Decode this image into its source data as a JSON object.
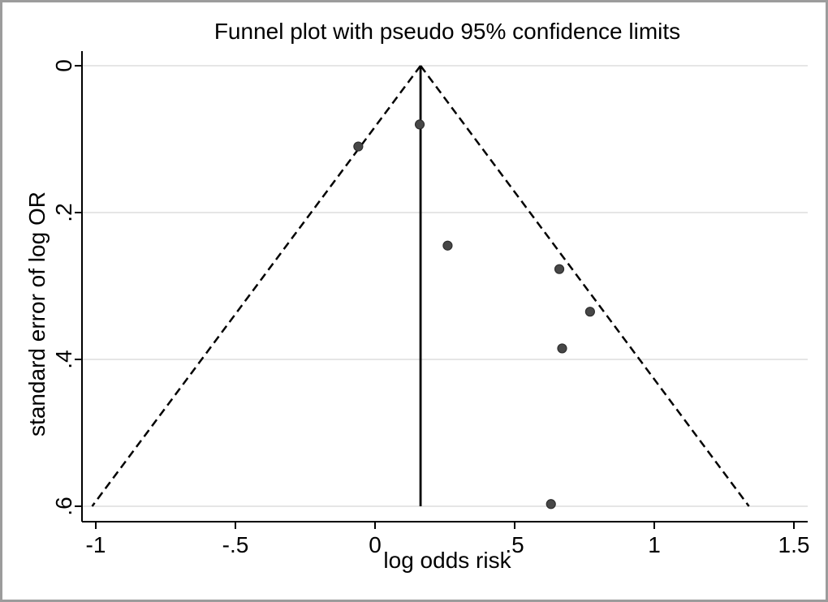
{
  "chart_data": {
    "type": "scatter",
    "subtype": "funnel-plot",
    "title": "Funnel plot with pseudo 95% confidence limits",
    "xlabel": "log odds risk",
    "ylabel": "standard error of log OR",
    "xlim": [
      -1.05,
      1.55
    ],
    "ylim": [
      0,
      0.62
    ],
    "y_inverted": true,
    "grid": "horizontal-only",
    "legend": "none",
    "x_ticks": {
      "values": [
        -1,
        -0.5,
        0,
        0.5,
        1,
        1.5
      ],
      "labels": [
        "-1",
        "-.5",
        "0",
        ".5",
        "1",
        "1.5"
      ]
    },
    "y_ticks": {
      "values": [
        0,
        0.2,
        0.4,
        0.6
      ],
      "labels": [
        "0",
        ".2",
        ".4",
        ".6"
      ]
    },
    "points": [
      {
        "x": -0.06,
        "se": 0.11
      },
      {
        "x": 0.16,
        "se": 0.08
      },
      {
        "x": 0.26,
        "se": 0.245
      },
      {
        "x": 0.66,
        "se": 0.277
      },
      {
        "x": 0.77,
        "se": 0.335
      },
      {
        "x": 0.67,
        "se": 0.385
      },
      {
        "x": 0.63,
        "se": 0.597
      }
    ],
    "center_line": {
      "x": 0.163,
      "se_from": 0,
      "se_to": 0.6,
      "style": "solid"
    },
    "funnel_limits": {
      "apex_x": 0.163,
      "apex_se": 0,
      "se_max": 0.6,
      "multiplier": 1.96,
      "style": "dashed"
    },
    "colors": {
      "marker": "#474747",
      "marker_edge": "#2e2e2e",
      "grid": "#e3e3e3",
      "axis": "#000000",
      "text": "#000000",
      "background": "#ffffff",
      "frame": "#9c9c9c"
    }
  }
}
